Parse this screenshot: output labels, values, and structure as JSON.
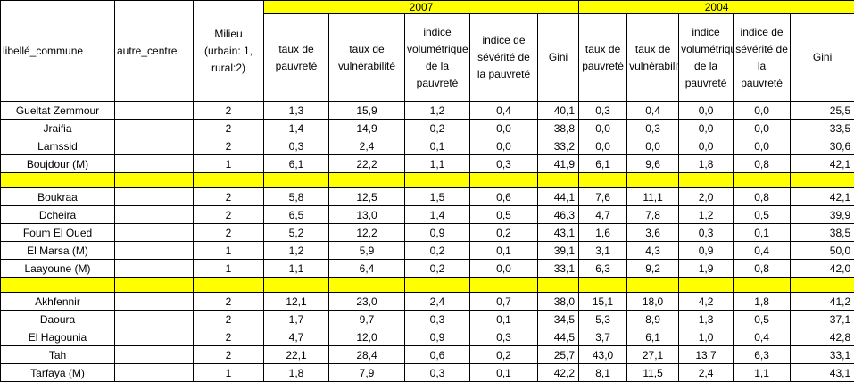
{
  "header": {
    "col_commune": "libellé_commune",
    "col_autre": "autre_centre",
    "col_milieu": "Milieu (urbain: 1, rural:2)",
    "year_2007": "2007",
    "year_2004": "2004",
    "h2007": [
      "taux de pauvreté",
      "taux de vulnérabilité",
      "indice volumétrique de la pauvreté",
      "indice de sévérité de la pauvreté",
      "Gini"
    ],
    "h2004": [
      "taux de pauvreté",
      "taux de vulnérabilité",
      "indice volumétrique de la pauvreté",
      "indice de sévérité de la pauvreté",
      "Gini"
    ]
  },
  "groups": [
    {
      "rows": [
        {
          "name": "Gueltat Zemmour",
          "autre": "",
          "milieu": "2",
          "v2007": [
            "1,3",
            "15,9",
            "1,2",
            "0,4",
            "40,1"
          ],
          "v2004": [
            "0,3",
            "0,4",
            "0,0",
            "0,0",
            "25,5"
          ]
        },
        {
          "name": "Jraifia",
          "autre": "",
          "milieu": "2",
          "v2007": [
            "1,4",
            "14,9",
            "0,2",
            "0,0",
            "38,8"
          ],
          "v2004": [
            "0,0",
            "0,3",
            "0,0",
            "0,0",
            "33,5"
          ]
        },
        {
          "name": "Lamssid",
          "autre": "",
          "milieu": "2",
          "v2007": [
            "0,3",
            "2,4",
            "0,1",
            "0,0",
            "33,2"
          ],
          "v2004": [
            "0,0",
            "0,0",
            "0,0",
            "0,0",
            "30,6"
          ]
        },
        {
          "name": "Boujdour (M)",
          "autre": "",
          "milieu": "1",
          "v2007": [
            "6,1",
            "22,2",
            "1,1",
            "0,3",
            "41,9"
          ],
          "v2004": [
            "6,1",
            "9,6",
            "1,8",
            "0,8",
            "42,1"
          ]
        }
      ]
    },
    {
      "rows": [
        {
          "name": "Boukraa",
          "autre": "",
          "milieu": "2",
          "v2007": [
            "5,8",
            "12,5",
            "1,5",
            "0,6",
            "44,1"
          ],
          "v2004": [
            "7,6",
            "11,1",
            "2,0",
            "0,8",
            "42,1"
          ]
        },
        {
          "name": "Dcheira",
          "autre": "",
          "milieu": "2",
          "v2007": [
            "6,5",
            "13,0",
            "1,4",
            "0,5",
            "46,3"
          ],
          "v2004": [
            "4,7",
            "7,8",
            "1,2",
            "0,5",
            "39,9"
          ]
        },
        {
          "name": "Foum El Oued",
          "autre": "",
          "milieu": "2",
          "v2007": [
            "5,2",
            "12,2",
            "0,9",
            "0,2",
            "43,1"
          ],
          "v2004": [
            "1,6",
            "3,6",
            "0,3",
            "0,1",
            "38,5"
          ]
        },
        {
          "name": "El Marsa (M)",
          "autre": "",
          "milieu": "1",
          "v2007": [
            "1,2",
            "5,9",
            "0,2",
            "0,1",
            "39,1"
          ],
          "v2004": [
            "3,1",
            "4,3",
            "0,9",
            "0,4",
            "50,0"
          ]
        },
        {
          "name": "Laayoune (M)",
          "autre": "",
          "milieu": "1",
          "v2007": [
            "1,1",
            "6,4",
            "0,2",
            "0,0",
            "33,1"
          ],
          "v2004": [
            "6,3",
            "9,2",
            "1,9",
            "0,8",
            "42,0"
          ]
        }
      ]
    },
    {
      "rows": [
        {
          "name": "Akhfennir",
          "autre": "",
          "milieu": "2",
          "v2007": [
            "12,1",
            "23,0",
            "2,4",
            "0,7",
            "38,0"
          ],
          "v2004": [
            "15,1",
            "18,0",
            "4,2",
            "1,8",
            "41,2"
          ]
        },
        {
          "name": "Daoura",
          "autre": "",
          "milieu": "2",
          "v2007": [
            "1,7",
            "9,7",
            "0,3",
            "0,1",
            "34,5"
          ],
          "v2004": [
            "5,3",
            "8,9",
            "1,3",
            "0,5",
            "37,1"
          ]
        },
        {
          "name": "El Hagounia",
          "autre": "",
          "milieu": "2",
          "v2007": [
            "4,7",
            "12,0",
            "0,9",
            "0,3",
            "44,5"
          ],
          "v2004": [
            "3,7",
            "6,1",
            "1,0",
            "0,4",
            "42,8"
          ]
        },
        {
          "name": "Tah",
          "autre": "",
          "milieu": "2",
          "v2007": [
            "22,1",
            "28,4",
            "0,6",
            "0,2",
            "25,7"
          ],
          "v2004": [
            "43,0",
            "27,1",
            "13,7",
            "6,3",
            "33,1"
          ]
        },
        {
          "name": "Tarfaya (M)",
          "autre": "",
          "milieu": "1",
          "v2007": [
            "1,8",
            "7,9",
            "0,3",
            "0,1",
            "42,2"
          ],
          "v2004": [
            "8,1",
            "11,5",
            "2,4",
            "1,1",
            "43,1"
          ]
        }
      ]
    }
  ],
  "colors": {
    "highlight": "#ffff00",
    "border": "#000000"
  }
}
